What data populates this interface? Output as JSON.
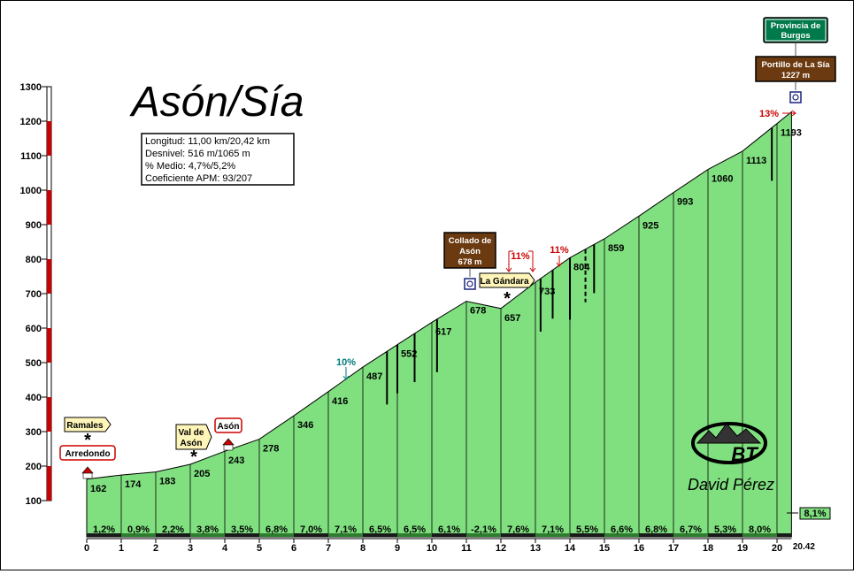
{
  "chart_data": {
    "type": "area",
    "title": "Asón/Sía",
    "xlabel": "",
    "ylabel": "",
    "xlim": [
      0,
      20.42
    ],
    "ylim": [
      100,
      1300
    ],
    "x_ticks": [
      "0",
      "1",
      "2",
      "3",
      "4",
      "5",
      "6",
      "7",
      "8",
      "9",
      "10",
      "11",
      "12",
      "13",
      "14",
      "15",
      "16",
      "17",
      "18",
      "19",
      "20"
    ],
    "x_end_label": "20.42",
    "y_ticks": [
      "100",
      "200",
      "300",
      "400",
      "500",
      "600",
      "700",
      "800",
      "900",
      "1000",
      "1100",
      "1200",
      "1300"
    ],
    "stats": [
      "Longitud: 11,00 km/20,42 km",
      "Desnivel: 516 m/1065 m",
      "% Medio: 4,7%/5,2%",
      "Coeficiente APM: 93/207"
    ],
    "profile": [
      {
        "x": 0,
        "y": 162
      },
      {
        "x": 1,
        "y": 174
      },
      {
        "x": 2,
        "y": 183
      },
      {
        "x": 3,
        "y": 205
      },
      {
        "x": 4,
        "y": 243
      },
      {
        "x": 5,
        "y": 278
      },
      {
        "x": 6,
        "y": 346
      },
      {
        "x": 7,
        "y": 416
      },
      {
        "x": 8,
        "y": 487
      },
      {
        "x": 9,
        "y": 552
      },
      {
        "x": 10,
        "y": 617
      },
      {
        "x": 11,
        "y": 678
      },
      {
        "x": 12,
        "y": 657
      },
      {
        "x": 13,
        "y": 733
      },
      {
        "x": 14,
        "y": 804
      },
      {
        "x": 15,
        "y": 859
      },
      {
        "x": 16,
        "y": 925
      },
      {
        "x": 17,
        "y": 993
      },
      {
        "x": 18,
        "y": 1060
      },
      {
        "x": 19,
        "y": 1113
      },
      {
        "x": 20,
        "y": 1193
      },
      {
        "x": 20.42,
        "y": 1227
      }
    ],
    "altitude_labels": [
      "162",
      "174",
      "183",
      "205",
      "243",
      "278",
      "346",
      "416",
      "487",
      "552",
      "617",
      "678",
      "657",
      "733",
      "804",
      "859",
      "925",
      "993",
      "1060",
      "1113",
      "1193"
    ],
    "segment_gradients": [
      "1,2%",
      "0,9%",
      "2,2%",
      "3,8%",
      "3,5%",
      "6,8%",
      "7,0%",
      "7,1%",
      "6,5%",
      "6,5%",
      "6,1%",
      "-2,1%",
      "7,6%",
      "7,1%",
      "5,5%",
      "6,6%",
      "6,8%",
      "6,7%",
      "5,3%",
      "8,0%"
    ],
    "last_segment_gradient": "8,1%",
    "max_gradients": [
      {
        "label": "10%",
        "x": 7.3,
        "color": "#007a7a"
      },
      {
        "label": "11%",
        "x": 12.4,
        "color": "#cc0000"
      },
      {
        "label": "11%",
        "x": 13.6,
        "color": "#cc0000"
      },
      {
        "label": "13%",
        "x": 20.2,
        "color": "#cc0000"
      }
    ],
    "places": [
      {
        "name": "Ramales",
        "x": 0.1,
        "style": "plain"
      },
      {
        "name": "Arredondo",
        "x": 0.1,
        "style": "red"
      },
      {
        "name": "Val de Asón",
        "x": 3.15,
        "style": "plain"
      },
      {
        "name": "Asón",
        "x": 4.2,
        "style": "red"
      },
      {
        "name": "La Gándara",
        "x": 12.1,
        "style": "plain"
      }
    ],
    "passes": [
      {
        "name": "Collado de Asón",
        "altitude": "678 m",
        "x": 11.0
      },
      {
        "name": "Portillo de La Sía",
        "altitude": "1227 m",
        "x": 20.42
      }
    ],
    "province_sign": "Provincia de Burgos",
    "author": "David Pérez",
    "logo_text": "BT"
  },
  "colors": {
    "fill": "#80e080",
    "outline": "#000000",
    "axis_red": "#cc0000",
    "sign_brown": "#6b3a10",
    "sign_green": "#007a4a",
    "sign_cream": "#fff5b8"
  }
}
